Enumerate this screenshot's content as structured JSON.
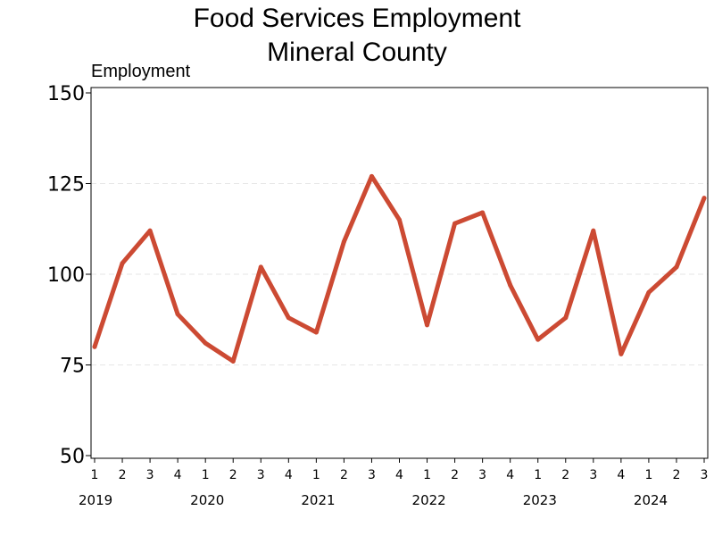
{
  "chart_data": {
    "type": "line",
    "title": "Food Services Employment",
    "subtitle": "Mineral County",
    "ylabel": "Employment",
    "xlabel": "",
    "ylim": [
      50,
      150
    ],
    "yticks": [
      50,
      75,
      100,
      125,
      150
    ],
    "grid": true,
    "legend": "none",
    "x": [
      "1",
      "2",
      "3",
      "4",
      "1",
      "2",
      "3",
      "4",
      "1",
      "2",
      "3",
      "4",
      "1",
      "2",
      "3",
      "4",
      "1",
      "2",
      "3",
      "4",
      "1",
      "2",
      "3"
    ],
    "year_labels": [
      {
        "label": "2019",
        "start_index": 0
      },
      {
        "label": "2020",
        "start_index": 4
      },
      {
        "label": "2021",
        "start_index": 8
      },
      {
        "label": "2022",
        "start_index": 12
      },
      {
        "label": "2023",
        "start_index": 16
      },
      {
        "label": "2024",
        "start_index": 20
      }
    ],
    "series": [
      {
        "name": "Employment",
        "color": "#cc4a33",
        "values": [
          80,
          103,
          112,
          89,
          81,
          76,
          102,
          88,
          84,
          109,
          127,
          115,
          86,
          114,
          117,
          97,
          82,
          88,
          112,
          78,
          95,
          102,
          121
        ]
      }
    ]
  }
}
